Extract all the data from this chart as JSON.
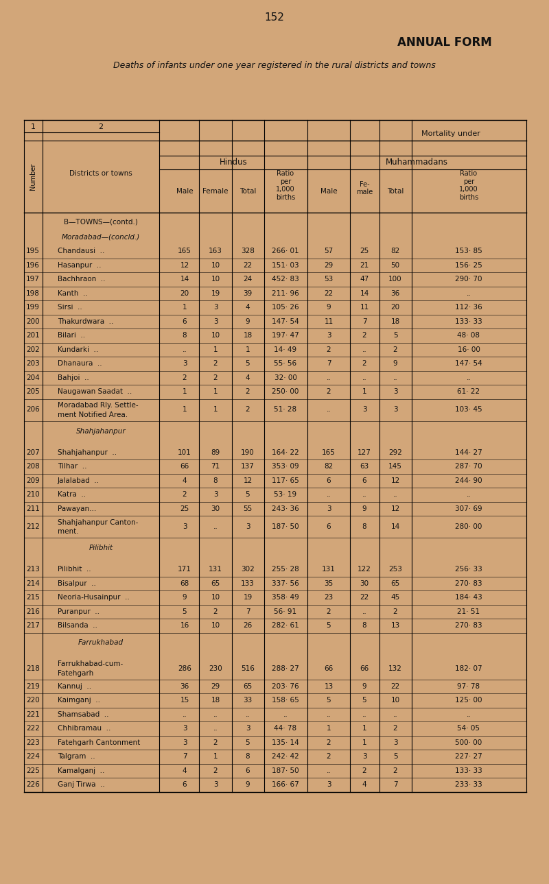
{
  "page_number": "152",
  "title1": "ANNUAL FORM",
  "title2": "Deaths of infants under one year registered in the rural districts and towns",
  "bg_color": "#d2a679",
  "rows": [
    {
      "num": "195",
      "name": "Chandausi",
      "dots": true,
      "hm": "165",
      "hf": "163",
      "ht": "328",
      "hr": "266· 01",
      "mm": "57",
      "mf": "25",
      "mt": "82",
      "mr": "153· 85"
    },
    {
      "num": "196",
      "name": "Hasanpur",
      "dots": true,
      "hm": "12",
      "hf": "10",
      "ht": "22",
      "hr": "151· 03",
      "mm": "29",
      "mf": "21",
      "mt": "50",
      "mr": "156· 25"
    },
    {
      "num": "197",
      "name": "Bachhraon",
      "dots": true,
      "hm": "14",
      "hf": "10",
      "ht": "24",
      "hr": "452· 83",
      "mm": "53",
      "mf": "47",
      "mt": "100",
      "mr": "290· 70"
    },
    {
      "num": "198",
      "name": "Kanth  ..",
      "dots": false,
      "hm": "20",
      "hf": "19",
      "ht": "39",
      "hr": "211· 96",
      "mm": "22",
      "mf": "14",
      "mt": "36",
      "mr": ".."
    },
    {
      "num": "199",
      "name": "Sirsi",
      "dots": true,
      "hm": "1",
      "hf": "3",
      "ht": "4",
      "hr": "105· 26",
      "mm": "9",
      "mf": "11",
      "mt": "20",
      "mr": "112· 36"
    },
    {
      "num": "200",
      "name": "Thakurdwara",
      "dots": true,
      "hm": "6",
      "hf": "3",
      "ht": "9",
      "hr": "147· 54",
      "mm": "11",
      "mf": "7",
      "mt": "18",
      "mr": "133· 33"
    },
    {
      "num": "201",
      "name": "Bilari  ..",
      "dots": false,
      "hm": "8",
      "hf": "10",
      "ht": "18",
      "hr": "197· 47",
      "mm": "3",
      "mf": "2",
      "mt": "5",
      "mr": "48· 08"
    },
    {
      "num": "202",
      "name": "Kundarki",
      "dots": true,
      "hm": "..",
      "hf": "1",
      "ht": "1",
      "hr": "14· 49",
      "mm": "2",
      "mf": "..",
      "mt": "2",
      "mr": "16· 00"
    },
    {
      "num": "203",
      "name": "Dhanaura",
      "dots": true,
      "hm": "3",
      "hf": "2",
      "ht": "5",
      "hr": "55· 56",
      "mm": "7",
      "mf": "2",
      "mt": "9",
      "mr": "147· 54"
    },
    {
      "num": "204",
      "name": "Bahjoi  ..",
      "dots": false,
      "hm": "2",
      "hf": "2",
      "ht": "4",
      "hr": "32· 00",
      "mm": "..",
      "mf": "..",
      "mt": "..",
      "mr": ".."
    },
    {
      "num": "205",
      "name": "Naugawan Saadat",
      "dots": true,
      "hm": "1",
      "hf": "1",
      "ht": "2",
      "hr": "250· 00",
      "mm": "2",
      "mf": "1",
      "mt": "3",
      "mr": "61· 22"
    },
    {
      "num": "206",
      "name": "Moradabad Rly. Settle-",
      "name2": "ment Notified Area.",
      "dots": false,
      "hm": "1",
      "hf": "1",
      "ht": "2",
      "hr": "51· 28",
      "mm": "..",
      "mf": "3",
      "mt": "3",
      "mr": "103· 45"
    },
    {
      "num": "207",
      "name": "Shahjahanpur",
      "dots": true,
      "hm": "101",
      "hf": "89",
      "ht": "190",
      "hr": "164· 22",
      "mm": "165",
      "mf": "127",
      "mt": "292",
      "mr": "144· 27"
    },
    {
      "num": "208",
      "name": "Tilhar  ..",
      "dots": false,
      "hm": "66",
      "hf": "71",
      "ht": "137",
      "hr": "353· 09",
      "mm": "82",
      "mf": "63",
      "mt": "145",
      "mr": "287· 70"
    },
    {
      "num": "209",
      "name": "Jalalabad",
      "dots": true,
      "hm": "4",
      "hf": "8",
      "ht": "12",
      "hr": "117· 65",
      "mm": "6",
      "mf": "6",
      "mt": "12",
      "mr": "244· 90"
    },
    {
      "num": "210",
      "name": "Katra  ..",
      "dots": false,
      "hm": "2",
      "hf": "3",
      "ht": "5",
      "hr": "53· 19",
      "mm": "..",
      "mf": "..",
      "mt": "..",
      "mr": ".."
    },
    {
      "num": "211",
      "name": "Pawayan...",
      "dots": false,
      "hm": "25",
      "hf": "30",
      "ht": "55",
      "hr": "243· 36",
      "mm": "3",
      "mf": "9",
      "mt": "12",
      "mr": "307· 69"
    },
    {
      "num": "212",
      "name": "Shahjahanpur Canton-",
      "name2": "ment.",
      "dots": false,
      "hm": "3",
      "hf": "..",
      "ht": "3",
      "hr": "187· 50",
      "mm": "6",
      "mf": "8",
      "mt": "14",
      "mr": "280· 00"
    },
    {
      "num": "213",
      "name": "Pilibhit  ..",
      "dots": false,
      "hm": "171",
      "hf": "131",
      "ht": "302",
      "hr": "255· 28",
      "mm": "131",
      "mf": "122",
      "mt": "253",
      "mr": "256· 33"
    },
    {
      "num": "214",
      "name": "Bisalpur  ..",
      "dots": false,
      "hm": "68",
      "hf": "65",
      "ht": "133",
      "hr": "337· 56",
      "mm": "35",
      "mf": "30",
      "mt": "65",
      "mr": "270· 83"
    },
    {
      "num": "215",
      "name": "Neoria-Husainpur",
      "dots": true,
      "hm": "9",
      "hf": "10",
      "ht": "19",
      "hr": "358· 49",
      "mm": "23",
      "mf": "22",
      "mt": "45",
      "mr": "184· 43"
    },
    {
      "num": "216",
      "name": "Puranpur",
      "dots": true,
      "hm": "5",
      "hf": "2",
      "ht": "7",
      "hr": "56· 91",
      "mm": "2",
      "mf": "..",
      "mt": "2",
      "mr": "21· 51"
    },
    {
      "num": "217",
      "name": "Bilsanda",
      "dots": true,
      "hm": "16",
      "hf": "10",
      "ht": "26",
      "hr": "282· 61",
      "mm": "5",
      "mf": "8",
      "mt": "13",
      "mr": "270· 83"
    },
    {
      "num": "218",
      "name": "Farrukhabad-cum-",
      "name2": "Fatehgarh",
      "dots": false,
      "hm": "286",
      "hf": "230",
      "ht": "516",
      "hr": "288· 27",
      "mm": "66",
      "mf": "66",
      "mt": "132",
      "mr": "182· 07"
    },
    {
      "num": "219",
      "name": "Kannuj",
      "dots": true,
      "hm": "36",
      "hf": "29",
      "ht": "65",
      "hr": "203· 76",
      "mm": "13",
      "mf": "9",
      "mt": "22",
      "mr": "97· 78"
    },
    {
      "num": "220",
      "name": "Kaimganj",
      "dots": true,
      "hm": "15",
      "hf": "18",
      "ht": "33",
      "hr": "158· 65",
      "mm": "5",
      "mf": "5",
      "mt": "10",
      "mr": "125· 00"
    },
    {
      "num": "221",
      "name": "Shamsabad",
      "dots": true,
      "hm": "..",
      "hf": "..",
      "ht": "..",
      "hr": "..",
      "mm": "..",
      "mf": "..",
      "mt": "..",
      "mr": ".."
    },
    {
      "num": "222",
      "name": "Chhibramau",
      "dots": true,
      "hm": "3",
      "hf": "..",
      "ht": "3",
      "hr": "44· 78",
      "mm": "1",
      "mf": "1",
      "mt": "2",
      "mr": "54· 05"
    },
    {
      "num": "223",
      "name": "Fatehgarh Cantonment",
      "dots": false,
      "hm": "3",
      "hf": "2",
      "ht": "5",
      "hr": "135· 14",
      "mm": "2",
      "mf": "1",
      "mt": "3",
      "mr": "500· 00"
    },
    {
      "num": "224",
      "name": "Talgram",
      "dots": true,
      "hm": "7",
      "hf": "1",
      "ht": "8",
      "hr": "242· 42",
      "mm": "2",
      "mf": "3",
      "mt": "5",
      "mr": "227· 27"
    },
    {
      "num": "225",
      "name": "Kamalganj",
      "dots": true,
      "hm": "4",
      "hf": "2",
      "ht": "6",
      "hr": "187· 50",
      "mm": "..",
      "mf": "2",
      "mt": "2",
      "mr": "133· 33"
    },
    {
      "num": "226",
      "name": "Ganj Tirwa",
      "dots": true,
      "hm": "6",
      "hf": "3",
      "ht": "9",
      "hr": "166· 67",
      "mm": "3",
      "mf": "4",
      "mt": "7",
      "mr": "233· 33"
    }
  ]
}
